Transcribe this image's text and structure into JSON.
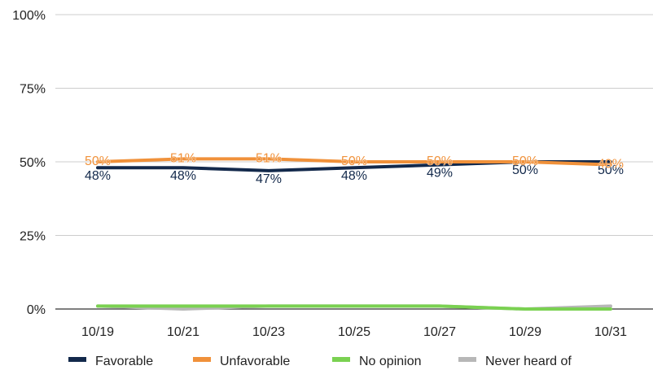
{
  "chart_data": {
    "type": "line",
    "categories": [
      "10/19",
      "10/21",
      "10/23",
      "10/25",
      "10/27",
      "10/29",
      "10/31"
    ],
    "y_ticks": [
      "0%",
      "25%",
      "50%",
      "75%",
      "100%"
    ],
    "ylim": [
      0,
      100
    ],
    "grid": true,
    "legend_position": "bottom",
    "series": [
      {
        "name": "Favorable",
        "color": "#13294b",
        "values": [
          48,
          48,
          47,
          48,
          49,
          50,
          50
        ],
        "labels": [
          "48%",
          "48%",
          "47%",
          "48%",
          "49%",
          "50%",
          "50%"
        ]
      },
      {
        "name": "Unfavorable",
        "color": "#f0913a",
        "values": [
          50,
          51,
          51,
          50,
          50,
          50,
          49
        ],
        "labels": [
          "50%",
          "51%",
          "51%",
          "50%",
          "50%",
          "50%",
          "49%"
        ]
      },
      {
        "name": "No opinion",
        "color": "#7ad151",
        "values": [
          1,
          1,
          1,
          1,
          1,
          0,
          0
        ],
        "labels": []
      },
      {
        "name": "Never heard of",
        "color": "#b7b7b7",
        "values": [
          1,
          0,
          1,
          1,
          1,
          0,
          1
        ],
        "labels": []
      }
    ]
  }
}
